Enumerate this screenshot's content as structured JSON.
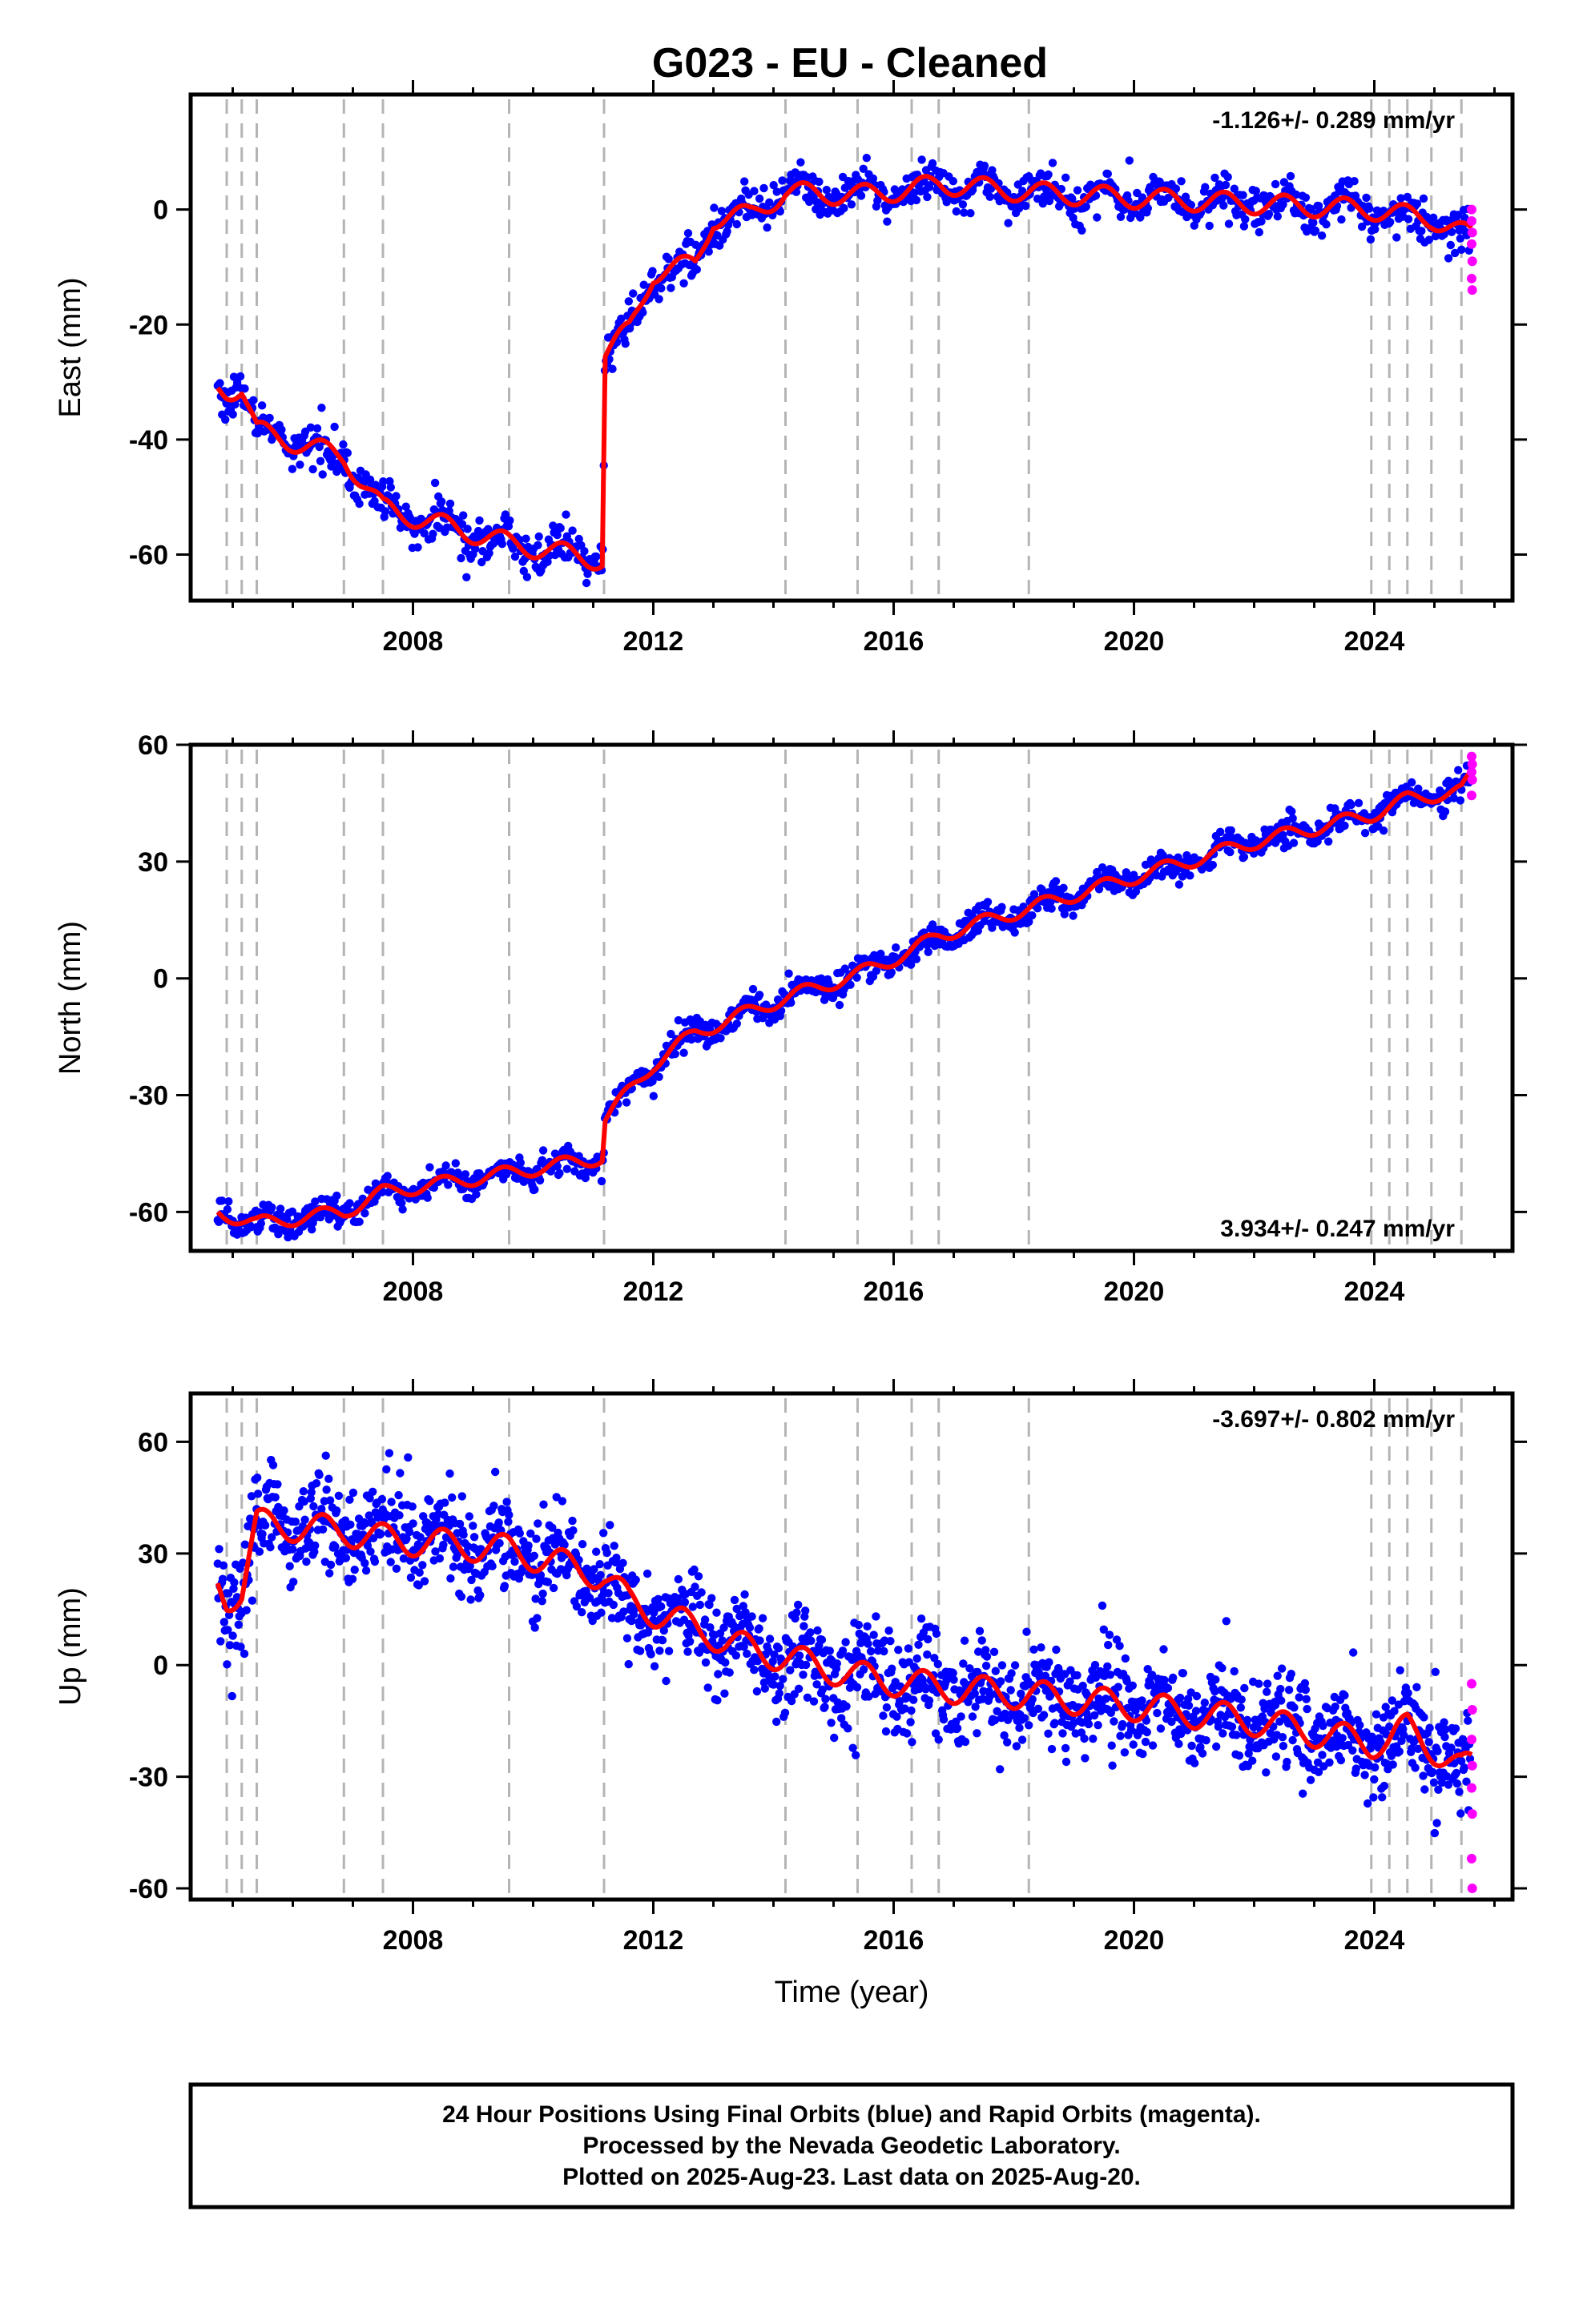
{
  "title": "G023  - EU - Cleaned",
  "footer": {
    "line1": "24 Hour Positions Using Final Orbits (blue) and Rapid Orbits (magenta).",
    "line2": "Processed by the Nevada Geodetic Laboratory.",
    "line3": "Plotted on 2025-Aug-23. Last data on 2025-Aug-20."
  },
  "colors": {
    "final": "#0000ff",
    "rapid": "#ff00ff",
    "model": "#ff0000",
    "event_line": "#b4b4b4"
  },
  "chart_data": [
    {
      "type": "scatter",
      "ylabel": "East (mm)",
      "xlabel": "",
      "rate_text": "-1.126+/- 0.289 mm/yr",
      "rate_position": "top-right",
      "xlim": [
        2004.3,
        2026.3
      ],
      "ylim": [
        -68,
        20
      ],
      "xticks": [
        2008,
        2012,
        2016,
        2020,
        2024
      ],
      "yticks": [
        -60,
        -40,
        -20,
        0
      ],
      "event_lines": [
        2004.9,
        2005.15,
        2005.4,
        2006.85,
        2007.5,
        2009.6,
        2011.18,
        2014.2,
        2015.4,
        2016.3,
        2016.75,
        2018.25,
        2023.95,
        2024.25,
        2024.55,
        2024.95,
        2025.45
      ],
      "model": {
        "amplitude": 1.8,
        "points": [
          [
            2004.75,
            -31
          ],
          [
            2004.9,
            -31.5
          ],
          [
            2005.15,
            -31
          ],
          [
            2005.4,
            -38.5
          ],
          [
            2006.85,
            -43
          ],
          [
            2007.5,
            -52
          ],
          [
            2009.6,
            -58
          ],
          [
            2011.15,
            -61
          ],
          [
            2011.2,
            -25
          ],
          [
            2011.6,
            -21
          ],
          [
            2012.0,
            -11
          ],
          [
            2012.7,
            -9.5
          ],
          [
            2013.0,
            -1.5
          ],
          [
            2013.6,
            -1
          ],
          [
            2014.2,
            3
          ],
          [
            2015.4,
            2.5
          ],
          [
            2016.3,
            3.5
          ],
          [
            2016.75,
            4.5
          ],
          [
            2018.25,
            3
          ],
          [
            2020.0,
            2
          ],
          [
            2022.0,
            1
          ],
          [
            2023.95,
            0
          ],
          [
            2024.25,
            -0.5
          ],
          [
            2024.55,
            -1
          ],
          [
            2024.95,
            -1.5
          ],
          [
            2025.45,
            -4
          ],
          [
            2025.62,
            -4.5
          ]
        ]
      },
      "scatter": {
        "start": 2004.75,
        "end": 2025.6,
        "step": 0.018,
        "noise": 1.7
      },
      "rapid_points": [
        [
          2025.62,
          0
        ],
        [
          2025.62,
          -2
        ],
        [
          2025.63,
          -4
        ],
        [
          2025.62,
          -6
        ],
        [
          2025.63,
          -9
        ],
        [
          2025.62,
          -12
        ],
        [
          2025.63,
          -14
        ]
      ]
    },
    {
      "type": "scatter",
      "ylabel": "North (mm)",
      "xlabel": "",
      "rate_text": "3.934+/- 0.247 mm/yr",
      "rate_position": "bottom-right",
      "xlim": [
        2004.3,
        2026.3
      ],
      "ylim": [
        -70,
        60
      ],
      "xticks": [
        2008,
        2012,
        2016,
        2020,
        2024
      ],
      "yticks": [
        -60,
        -30,
        0,
        30,
        60
      ],
      "event_lines": [
        2004.9,
        2005.15,
        2005.4,
        2006.85,
        2007.5,
        2009.6,
        2011.18,
        2014.2,
        2015.4,
        2016.3,
        2016.75,
        2018.25,
        2023.95,
        2024.25,
        2024.55,
        2024.95,
        2025.45
      ],
      "model": {
        "amplitude": 1.8,
        "points": [
          [
            2004.75,
            -60
          ],
          [
            2005.4,
            -63
          ],
          [
            2006.85,
            -60
          ],
          [
            2007.5,
            -55
          ],
          [
            2009.6,
            -50
          ],
          [
            2011.15,
            -46
          ],
          [
            2011.2,
            -36
          ],
          [
            2012.0,
            -22
          ],
          [
            2012.7,
            -14
          ],
          [
            2014.2,
            -5
          ],
          [
            2015.4,
            1
          ],
          [
            2016.3,
            7
          ],
          [
            2016.75,
            11
          ],
          [
            2018.25,
            18
          ],
          [
            2020.0,
            26
          ],
          [
            2022.0,
            35
          ],
          [
            2023.95,
            42
          ],
          [
            2024.55,
            46
          ],
          [
            2024.95,
            47
          ],
          [
            2025.45,
            48
          ],
          [
            2025.62,
            52
          ]
        ]
      },
      "scatter": {
        "start": 2004.75,
        "end": 2025.6,
        "step": 0.018,
        "noise": 1.8
      },
      "rapid_points": [
        [
          2025.62,
          57
        ],
        [
          2025.63,
          55
        ],
        [
          2025.62,
          53
        ],
        [
          2025.63,
          51
        ],
        [
          2025.62,
          47
        ]
      ]
    },
    {
      "type": "scatter",
      "ylabel": "Up (mm)",
      "xlabel": "Time (year)",
      "rate_text": "-3.697+/- 0.802 mm/yr",
      "rate_position": "top-right",
      "xlim": [
        2004.3,
        2026.3
      ],
      "ylim": [
        -63,
        73
      ],
      "xticks": [
        2008,
        2012,
        2016,
        2020,
        2024
      ],
      "yticks": [
        -60,
        -30,
        0,
        30,
        60
      ],
      "event_lines": [
        2004.9,
        2005.15,
        2005.4,
        2006.85,
        2007.5,
        2009.6,
        2011.18,
        2014.2,
        2015.4,
        2016.3,
        2016.75,
        2018.25,
        2023.95,
        2024.25,
        2024.55,
        2024.95,
        2025.45
      ],
      "model": {
        "amplitude": 4,
        "points": [
          [
            2004.75,
            22
          ],
          [
            2004.9,
            18
          ],
          [
            2005.15,
            20
          ],
          [
            2005.4,
            38
          ],
          [
            2006.85,
            36
          ],
          [
            2007.5,
            34
          ],
          [
            2009.6,
            31
          ],
          [
            2011.18,
            24
          ],
          [
            2011.6,
            17
          ],
          [
            2012.2,
            13
          ],
          [
            2012.9,
            9
          ],
          [
            2013.2,
            6
          ],
          [
            2014.2,
            2
          ],
          [
            2015.4,
            -3
          ],
          [
            2016.3,
            -5
          ],
          [
            2016.75,
            -6
          ],
          [
            2018.25,
            -8
          ],
          [
            2020.0,
            -11
          ],
          [
            2022.0,
            -15
          ],
          [
            2023.95,
            -21
          ],
          [
            2024.25,
            -20
          ],
          [
            2024.55,
            -17
          ],
          [
            2024.95,
            -22
          ],
          [
            2025.45,
            -28
          ],
          [
            2025.62,
            -27
          ]
        ]
      },
      "scatter": {
        "start": 2004.75,
        "end": 2025.6,
        "step": 0.012,
        "noise": 6.5
      },
      "rapid_points": [
        [
          2025.62,
          -5
        ],
        [
          2025.63,
          -12
        ],
        [
          2025.62,
          -20
        ],
        [
          2025.63,
          -27
        ],
        [
          2025.62,
          -33
        ],
        [
          2025.63,
          -40
        ],
        [
          2025.62,
          -52
        ],
        [
          2025.63,
          -60
        ]
      ]
    }
  ]
}
